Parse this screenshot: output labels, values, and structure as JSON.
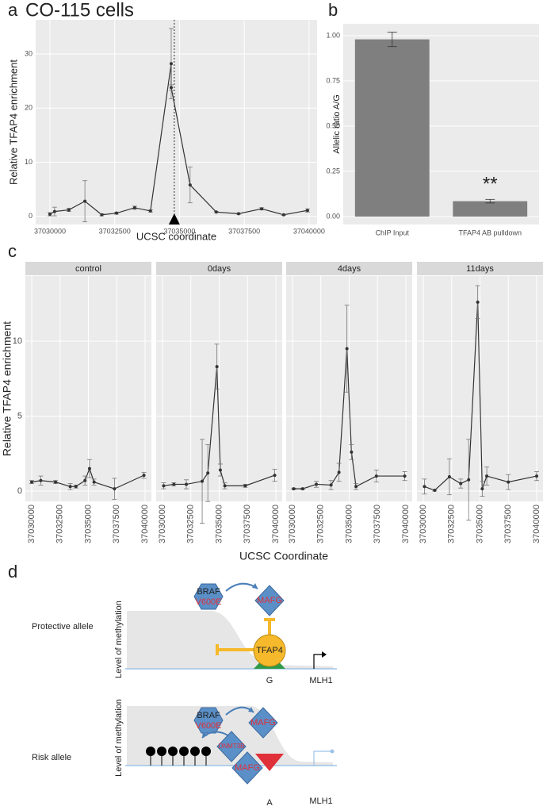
{
  "chart_data": [
    {
      "type": "line",
      "label": "a",
      "title": "CO-115 cells",
      "xlabel": "UCSC coordinate",
      "ylabel": "Relative TFAP4 enrichment",
      "x": [
        37030000,
        37030180,
        37030730,
        37031350,
        37032000,
        37032570,
        37033270,
        37033880,
        37034680,
        37034680,
        37035410,
        37036420,
        37037280,
        37038170,
        37039020,
        37039940
      ],
      "values": [
        0.4,
        0.9,
        1.2,
        2.8,
        0.3,
        0.6,
        1.6,
        1.0,
        28.2,
        23.8,
        5.8,
        0.8,
        0.5,
        1.4,
        0.3,
        1.1
      ],
      "errors": [
        0.3,
        0.8,
        0.3,
        3.8,
        0.2,
        0.2,
        0.3,
        0.2,
        6.5,
        0.5,
        3.3,
        0.1,
        0.1,
        0.2,
        0.1,
        0.3
      ],
      "reference_x": 37034800,
      "color": "#333333",
      "xlim": [
        37029450,
        37040310
      ],
      "ylim": [
        -1.5,
        36.3
      ],
      "xticks": [
        37030000,
        37032500,
        37035000,
        37037500,
        37040000
      ],
      "yticks": [
        0,
        10,
        20,
        30
      ],
      "grid": true
    },
    {
      "type": "bar",
      "label": "b",
      "ylabel": "Allelic ratio A/G",
      "categories": [
        "ChIP Input",
        "TFAP4 AB pulldown"
      ],
      "values": [
        0.98,
        0.085
      ],
      "errors": [
        0.04,
        0.01
      ],
      "annotation": "**",
      "color": "#7f7f7f",
      "ylim": [
        -0.044,
        1.066
      ],
      "yticks": [
        {
          "value": 0,
          "label": "0.00"
        },
        {
          "value": 0.25,
          "label": "0.25"
        },
        {
          "value": 0.5,
          "label": "0.50"
        },
        {
          "value": 0.75,
          "label": "0.75"
        },
        {
          "value": 1,
          "label": "1.00"
        }
      ],
      "grid": true
    },
    {
      "type": "facet-line",
      "label": "c",
      "xlabel": "UCSC Coordinate",
      "ylabel": "Relative TFAP4 enrichment",
      "xlim": [
        37029440,
        37040560
      ],
      "ylim": [
        -0.69,
        14.34
      ],
      "xticks": [
        37030000,
        37032500,
        37035000,
        37037500,
        37040000
      ],
      "yticks": [
        0,
        5,
        10
      ],
      "grid": true,
      "series": [
        {
          "name": "control",
          "color": "#333333",
          "x": [
            37030000,
            37030800,
            37032100,
            37033400,
            37033900,
            37034700,
            37035100,
            37035500,
            37037300,
            37039900
          ],
          "values": [
            0.6,
            0.7,
            0.6,
            0.3,
            0.3,
            0.7,
            1.5,
            0.6,
            0.15,
            1.05
          ],
          "errors": [
            0.1,
            0.3,
            0.1,
            0.2,
            0.1,
            0.3,
            0.6,
            0.2,
            0.7,
            0.2
          ]
        },
        {
          "name": "0days",
          "color": "#333333",
          "x": [
            37030100,
            37031000,
            37032100,
            37033500,
            37034000,
            37034800,
            37035100,
            37035500,
            37037300,
            37039900
          ],
          "values": [
            0.35,
            0.45,
            0.45,
            0.65,
            1.2,
            8.3,
            1.4,
            0.35,
            0.35,
            1.05
          ],
          "errors": [
            0.2,
            0.1,
            0.3,
            2.8,
            1.9,
            1.5,
            0.4,
            0.2,
            0.1,
            0.4
          ]
        },
        {
          "name": "4days",
          "color": "#333333",
          "x": [
            37030100,
            37030900,
            37032100,
            37033400,
            37034100,
            37034800,
            37035200,
            37035600,
            37037400,
            37039900
          ],
          "values": [
            0.15,
            0.15,
            0.45,
            0.4,
            1.25,
            9.5,
            2.6,
            0.3,
            1.0,
            1.0
          ],
          "errors": [
            0.05,
            0.05,
            0.2,
            0.3,
            0.6,
            2.9,
            0.5,
            0.2,
            0.4,
            0.3
          ]
        },
        {
          "name": "11days",
          "color": "#333333",
          "x": [
            37030100,
            37031000,
            37032300,
            37033300,
            37034000,
            37034800,
            37035200,
            37035600,
            37037500,
            37040000
          ],
          "values": [
            0.3,
            0.05,
            0.95,
            0.5,
            0.75,
            12.6,
            0.15,
            1.0,
            0.6,
            1.0
          ],
          "errors": [
            0.5,
            0.05,
            1.2,
            0.3,
            2.7,
            1.1,
            0.5,
            0.6,
            0.5,
            0.3
          ]
        }
      ]
    }
  ],
  "diagram": {
    "label": "d",
    "panels": [
      {
        "title": "Protective allele",
        "axis_label": "Level of methylation",
        "kinase": "BRAF",
        "mutation": "V600E",
        "repressor": "MAFG",
        "factor": "TFAP4",
        "base": "G",
        "gene": "MLH1"
      },
      {
        "title": "Risk allele",
        "axis_label": "Level of methylation",
        "kinase": "BRAF",
        "mutation": "V600E",
        "repressor": "MAFG",
        "methyltransferase": "DNMT3B",
        "base": "A",
        "gene": "MLH1"
      }
    ]
  }
}
